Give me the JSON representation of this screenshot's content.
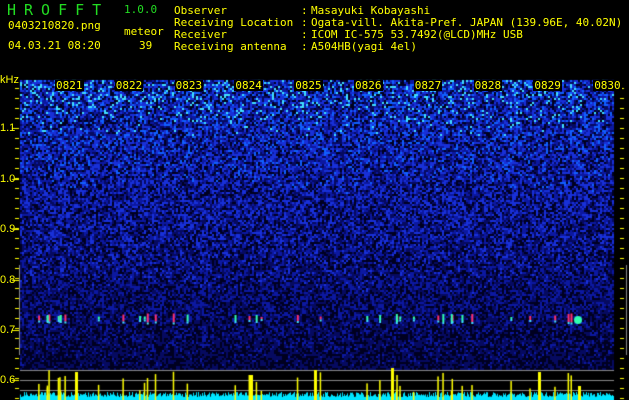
{
  "app": {
    "title": "HROFFT",
    "version": "1.0.0"
  },
  "file": {
    "name": "0403210820.png",
    "datetime": "04.03.21 08:20"
  },
  "meteor": {
    "label": "meteor",
    "count": "39"
  },
  "info": [
    {
      "label": "Observer",
      "value": "Masayuki Kobayashi"
    },
    {
      "label": "Receiving Location",
      "value": "Ogata-vill. Akita-Pref. JAPAN (139.96E, 40.02N)"
    },
    {
      "label": "Receiver",
      "value": "ICOM IC-575 53.7492(@LCD)MHz USB"
    },
    {
      "label": "Receiving antenna",
      "value": "A504HB(yagi 4el)"
    }
  ],
  "colon": ":",
  "spectrogram": {
    "y_unit": "kHz",
    "y_ticks": [
      "1.1",
      "1.0",
      "0.9",
      "0.8",
      "0.7",
      "0.6"
    ],
    "time_labels": [
      "0821",
      "0822",
      "0823",
      "0824",
      "0825",
      "0826",
      "0827",
      "0828",
      "0829",
      "0830"
    ]
  },
  "colors": {
    "text": "#ffff00",
    "title": "#22dd22",
    "noise": "#1a2ad0",
    "level_bars": "#00e5ff",
    "meteor_bars": "#ffff00"
  }
}
